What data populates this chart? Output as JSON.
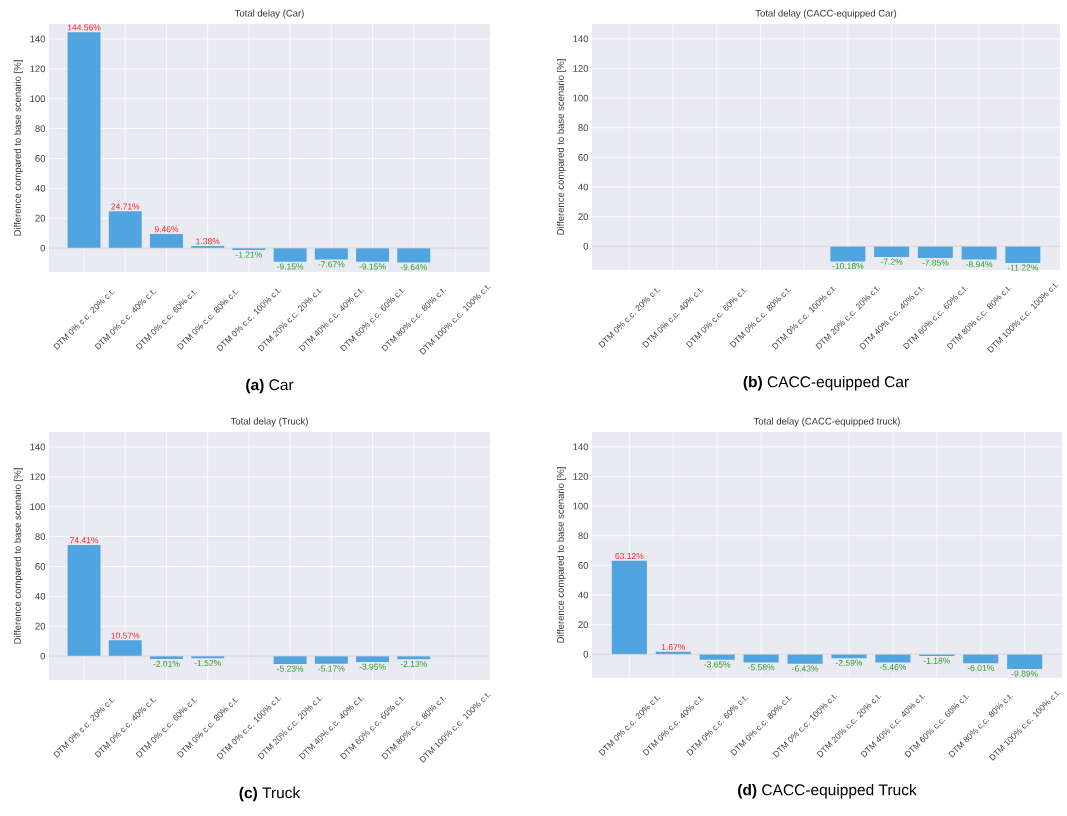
{
  "chart_data": [
    {
      "type": "bar",
      "title": "Total delay (Car)",
      "ylabel": "Difference compared to base scenario [%]",
      "categories": [
        "DTM 0% c.c. 20% c.t.",
        "DTM 0% c.c. 40% c.t.",
        "DTM 0% c.c. 60% c.t.",
        "DTM 0% c.c. 80% c.t.",
        "DTM 0% c.c. 100% c.t.",
        "DTM 20% c.c. 20% c.t.",
        "DTM 40% c.c. 40% c.t.",
        "DTM 60% c.c. 60% c.t.",
        "DTM 80% c.c. 80% c.t.",
        "DTM 100% c.c. 100% c.t."
      ],
      "values": [
        144.56,
        24.71,
        9.46,
        1.38,
        -1.21,
        -9.15,
        -7.67,
        -9.15,
        -9.64,
        null
      ],
      "value_labels": [
        "144.56%",
        "24.71%",
        "9.46%",
        "1.38%",
        "-1.21%",
        "-9.15%",
        "-7.67%",
        "-9.15%",
        "-9.64%",
        null
      ],
      "color": "#50a5e0",
      "ylim": [
        -16,
        150
      ],
      "yticks": [
        0,
        20,
        40,
        60,
        80,
        100,
        120,
        140
      ],
      "grid": true,
      "ref_lines": [
        {
          "axis": "y",
          "value": 0,
          "color": "#cccccc"
        }
      ],
      "annotations": [
        "**(a)** Car"
      ]
    },
    {
      "type": "bar",
      "title": "Total delay (CACC-equipped Car)",
      "ylabel": "Difference compared to base scenario [%]",
      "categories": [
        "DTM 0% c.c. 20% c.t.",
        "DTM 0% c.c. 40% c.t.",
        "DTM 0% c.c. 60% c.t.",
        "DTM 0% c.c. 80% c.t.",
        "DTM 0% c.c. 100% c.t.",
        "DTM 20% c.c. 20% c.t.",
        "DTM 40% c.c. 40% c.t.",
        "DTM 60% c.c. 60% c.t.",
        "DTM 80% c.c. 80% c.t.",
        "DTM 100% c.c. 100% c.t."
      ],
      "values": [
        null,
        null,
        null,
        null,
        null,
        -10.18,
        -7.2,
        -7.85,
        -8.94,
        -11.22
      ],
      "value_labels": [
        null,
        null,
        null,
        null,
        null,
        "-10.18%",
        "-7.2%",
        "-7.85%",
        "-8.94%",
        "-11.22%"
      ],
      "color": "#50a5e0",
      "ylim": [
        -16,
        150
      ],
      "yticks": [
        0,
        20,
        40,
        60,
        80,
        100,
        120,
        140
      ],
      "grid": true,
      "ref_lines": [
        {
          "axis": "y",
          "value": 0,
          "color": "#cccccc"
        }
      ],
      "annotations": [
        "**(b)** CACC-equipped Car"
      ]
    },
    {
      "type": "bar",
      "title": "Total delay (Truck)",
      "ylabel": "Difference compared to base scenario [%]",
      "categories": [
        "DTM 0% c.c. 20% c.t.",
        "DTM 0% c.c. 40% c.t.",
        "DTM 0% c.c. 60% c.t.",
        "DTM 0% c.c. 80% c.t.",
        "DTM 0% c.c. 100% c.t.",
        "DTM 20% c.c. 20% c.t.",
        "DTM 40% c.c. 40% c.t.",
        "DTM 60% c.c. 60% c.t.",
        "DTM 80% c.c. 80% c.t.",
        "DTM 100% c.c. 100% c.t."
      ],
      "values": [
        74.41,
        10.57,
        -2.01,
        -1.52,
        null,
        -5.23,
        -5.17,
        -3.95,
        -2.13,
        null
      ],
      "value_labels": [
        "74.41%",
        "10.57%",
        "-2.01%",
        "-1.52%",
        null,
        "-5.23%",
        "-5.17%",
        "-3.95%",
        "-2.13%",
        null
      ],
      "color": "#50a5e0",
      "ylim": [
        -16,
        150
      ],
      "yticks": [
        0,
        20,
        40,
        60,
        80,
        100,
        120,
        140
      ],
      "grid": true,
      "ref_lines": [
        {
          "axis": "y",
          "value": 0,
          "color": "#cccccc"
        }
      ],
      "annotations": [
        "**(c)** Truck"
      ]
    },
    {
      "type": "bar",
      "title": "Total delay (CACC-equipped truck)",
      "ylabel": "Difference compared to base scenario [%]",
      "categories": [
        "DTM 0% c.c. 20% c.t.",
        "DTM 0% c.c. 40% c.t.",
        "DTM 0% c.c. 60% c.t.",
        "DTM 0% c.c. 80% c.t.",
        "DTM 0% c.c. 100% c.t.",
        "DTM 20% c.c. 20% c.t.",
        "DTM 40% c.c. 40% c.t.",
        "DTM 60% c.c. 60% c.t.",
        "DTM 80% c.c. 80% c.t.",
        "DTM 100% c.c. 100% c.t."
      ],
      "values": [
        63.12,
        1.67,
        -3.65,
        -5.58,
        -6.43,
        -2.59,
        -5.46,
        -1.18,
        -6.01,
        -9.89
      ],
      "value_labels": [
        "63.12%",
        "1.67%",
        "-3.65%",
        "-5.58%",
        "-6.43%",
        "-2.59%",
        "-5.46%",
        "-1.18%",
        "-6.01%",
        "-9.89%"
      ],
      "color": "#50a5e0",
      "ylim": [
        -16,
        150
      ],
      "yticks": [
        0,
        20,
        40,
        60,
        80,
        100,
        120,
        140
      ],
      "grid": true,
      "ref_lines": [
        {
          "axis": "y",
          "value": 0,
          "color": "#cccccc"
        }
      ],
      "annotations": [
        "**(d)** CACC-equipped Truck"
      ]
    }
  ]
}
